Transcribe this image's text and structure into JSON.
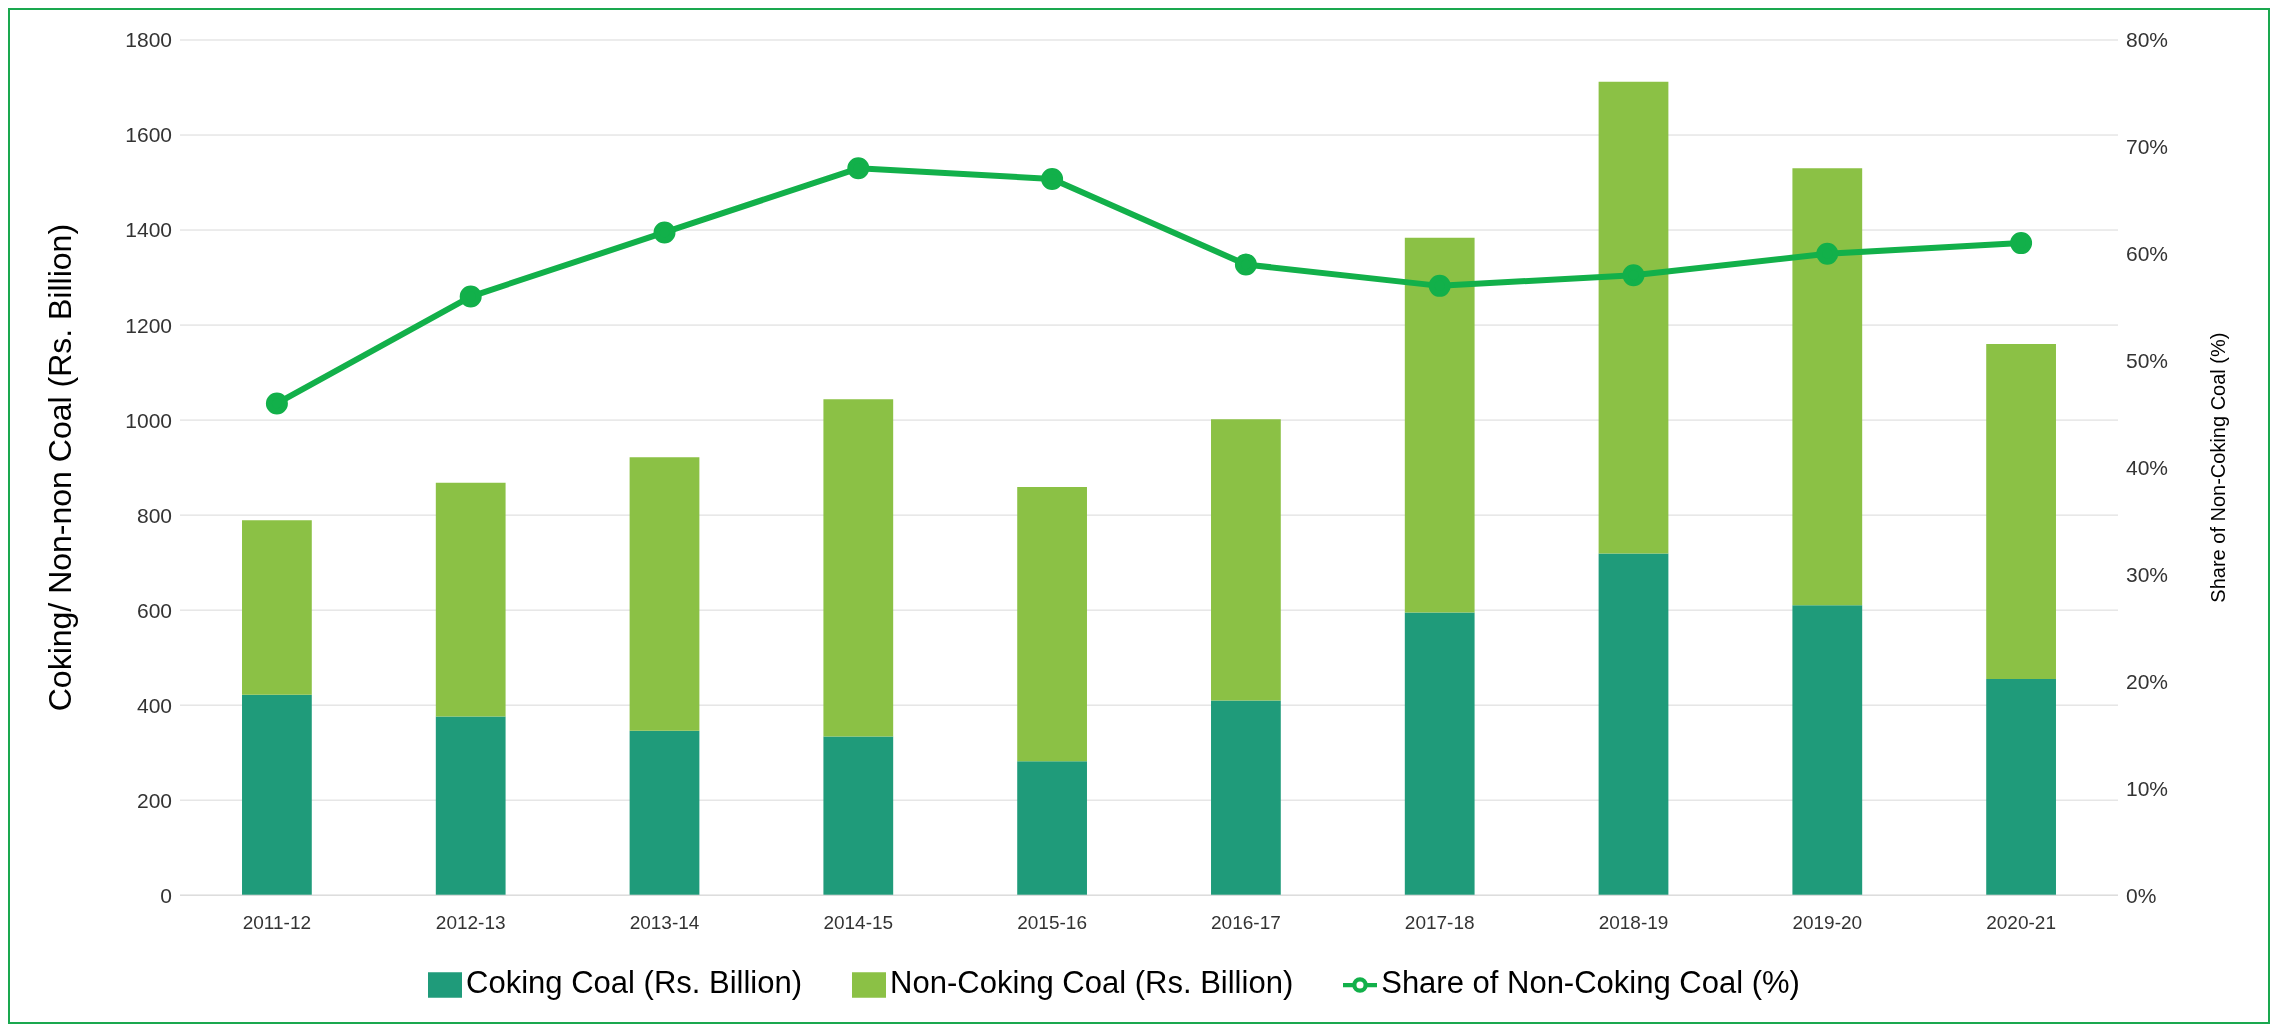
{
  "chart_data": {
    "type": "bar",
    "stacked": true,
    "categories": [
      "2011-12",
      "2012-13",
      "2013-14",
      "2014-15",
      "2015-16",
      "2016-17",
      "2017-18",
      "2018-19",
      "2019-20",
      "2020-21"
    ],
    "series": [
      {
        "name": "Coking Coal (Rs. Billion)",
        "color": "#1f9b7a",
        "values": [
          422,
          376,
          346,
          334,
          282,
          410,
          595,
          719,
          610,
          455
        ]
      },
      {
        "name": "Non-Coking Coal (Rs. Billion)",
        "color": "#8bc145",
        "values": [
          367,
          492,
          576,
          710,
          577,
          592,
          789,
          993,
          920,
          705
        ]
      },
      {
        "name": "Share of Non-Coking Coal (%)",
        "type": "line",
        "axis": "y2",
        "color": "#12b04a",
        "marker": "circle",
        "line_style": "solid",
        "values": [
          46,
          56,
          62,
          68,
          67,
          59,
          57,
          58,
          60,
          61
        ]
      }
    ],
    "ylabel": "Coking/ Non-non Coal (Rs. Billion)",
    "y2label": "Share of Non-Coking Coal (%)",
    "ylim": [
      0,
      1800
    ],
    "yticks": [
      0,
      200,
      400,
      600,
      800,
      1000,
      1200,
      1400,
      1600,
      1800
    ],
    "y2lim": [
      0,
      80
    ],
    "y2ticks": [
      {
        "value": 0,
        "label": "0%"
      },
      {
        "value": 10,
        "label": "10%"
      },
      {
        "value": 20,
        "label": "20%"
      },
      {
        "value": 30,
        "label": "30%"
      },
      {
        "value": 40,
        "label": "40%"
      },
      {
        "value": 50,
        "label": "50%"
      },
      {
        "value": 60,
        "label": "60%"
      },
      {
        "value": 70,
        "label": "70%"
      },
      {
        "value": 80,
        "label": "80%"
      }
    ],
    "grid": "y",
    "legend": "bottom"
  }
}
